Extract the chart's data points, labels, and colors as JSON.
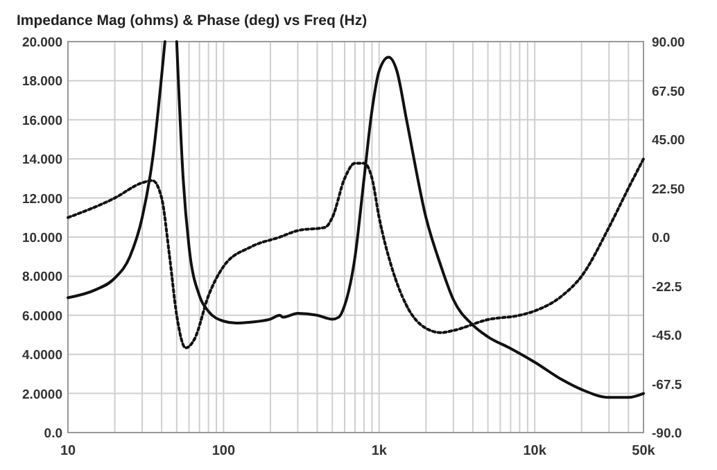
{
  "chart_data": {
    "type": "line",
    "title": "Impedance Mag (ohms) & Phase (deg) vs Freq (Hz)",
    "log": "x",
    "grid": true,
    "xlim": [
      10,
      50000
    ],
    "ylim": [
      0,
      20
    ],
    "y2lim": [
      -90,
      90
    ],
    "xticks": [
      10,
      {
        "value": 20,
        "label": null
      },
      {
        "value": 30,
        "label": null
      },
      {
        "value": 40,
        "label": null
      },
      {
        "value": 50,
        "label": null
      },
      {
        "value": 60,
        "label": null
      },
      {
        "value": 70,
        "label": null
      },
      {
        "value": 80,
        "label": null
      },
      {
        "value": 90,
        "label": null
      },
      100,
      {
        "value": 200,
        "label": null
      },
      {
        "value": 300,
        "label": null
      },
      {
        "value": 400,
        "label": null
      },
      {
        "value": 500,
        "label": null
      },
      {
        "value": 600,
        "label": null
      },
      {
        "value": 700,
        "label": null
      },
      {
        "value": 800,
        "label": null
      },
      {
        "value": 900,
        "label": null
      },
      {
        "value": 1000,
        "label": "1k"
      },
      {
        "value": 2000,
        "label": null
      },
      {
        "value": 3000,
        "label": null
      },
      {
        "value": 4000,
        "label": null
      },
      {
        "value": 5000,
        "label": null
      },
      {
        "value": 6000,
        "label": null
      },
      {
        "value": 7000,
        "label": null
      },
      {
        "value": 8000,
        "label": null
      },
      {
        "value": 9000,
        "label": null
      },
      {
        "value": 10000,
        "label": "10k"
      },
      {
        "value": 20000,
        "label": null
      },
      {
        "value": 30000,
        "label": null
      },
      {
        "value": 40000,
        "label": null
      },
      {
        "value": 50000,
        "label": "50k"
      }
    ],
    "yticks": [
      {
        "value": 0,
        "label": "0.0"
      },
      {
        "value": 2,
        "label": "2.0000"
      },
      {
        "value": 4,
        "label": "4.0000"
      },
      {
        "value": 6,
        "label": "6.0000"
      },
      {
        "value": 8,
        "label": "8.0000"
      },
      {
        "value": 10,
        "label": "10.000"
      },
      {
        "value": 12,
        "label": "12.000"
      },
      {
        "value": 14,
        "label": "14.000"
      },
      {
        "value": 16,
        "label": "16.000"
      },
      {
        "value": 18,
        "label": "18.000"
      },
      {
        "value": 20,
        "label": "20.000"
      }
    ],
    "y2ticks": [
      {
        "value": -90,
        "label": "-90.0"
      },
      {
        "value": -67.5,
        "label": "-67.5"
      },
      {
        "value": -45,
        "label": "-45.0"
      },
      {
        "value": -22.5,
        "label": "-22.5"
      },
      {
        "value": 0,
        "label": "0.0"
      },
      {
        "value": 22.5,
        "label": "22.50"
      },
      {
        "value": 45,
        "label": "45.00"
      },
      {
        "value": 67.5,
        "label": "67.50"
      },
      {
        "value": 90,
        "label": "90.00"
      }
    ],
    "series": [
      {
        "color": "#111111",
        "line_style": "solid",
        "x": [
          10,
          15,
          20,
          25,
          30,
          35,
          42,
          46,
          50,
          55,
          60,
          70,
          80,
          100,
          120,
          150,
          200,
          230,
          240,
          300,
          400,
          500,
          550,
          600,
          700,
          800,
          900,
          1000,
          1150,
          1300,
          1500,
          2000,
          2500,
          3000,
          4000,
          5000,
          7000,
          10000,
          15000,
          20000,
          30000,
          40000,
          50000
        ],
        "values": [
          6.9,
          7.3,
          7.9,
          9,
          11,
          14,
          20,
          null,
          20,
          13,
          9.5,
          7,
          6.2,
          5.7,
          5.6,
          5.65,
          5.8,
          6,
          5.9,
          6.1,
          6,
          5.8,
          5.9,
          6.5,
          9,
          13,
          16.5,
          18.5,
          19.2,
          18.5,
          16,
          11,
          8.5,
          6.8,
          5.5,
          4.9,
          4.3,
          3.6,
          2.7,
          2.2,
          1.8,
          1.8,
          2
        ]
      },
      {
        "color": "#111111",
        "line_style": "dotted",
        "axis": "y2",
        "x": [
          10,
          20,
          30,
          35,
          40,
          45,
          50,
          57,
          65,
          80,
          100,
          150,
          230,
          300,
          450,
          500,
          600,
          700,
          800,
          900,
          1000,
          1200,
          1500,
          2000,
          2500,
          3000,
          5000,
          8000,
          10000,
          15000,
          20000,
          30000,
          40000,
          50000
        ],
        "values": [
          9,
          18,
          25,
          26,
          18,
          -9,
          -36,
          -51,
          -47,
          -27,
          -13.5,
          -4.5,
          0,
          3,
          4.5,
          9,
          27,
          34,
          34,
          27,
          9,
          -13.5,
          -31.5,
          -42,
          -44,
          -43,
          -38,
          -36,
          -34,
          -27,
          -18,
          4.5,
          22.5,
          36
        ]
      }
    ]
  }
}
